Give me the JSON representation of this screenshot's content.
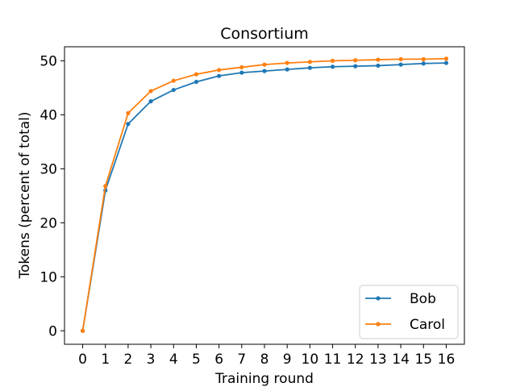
{
  "chart_data": {
    "type": "line",
    "title": "Consortium",
    "xlabel": "Training round",
    "ylabel": "Tokens (percent of total)",
    "x": [
      0,
      1,
      2,
      3,
      4,
      5,
      6,
      7,
      8,
      9,
      10,
      11,
      12,
      13,
      14,
      15,
      16
    ],
    "xticks": [
      "0",
      "1",
      "2",
      "3",
      "4",
      "5",
      "6",
      "7",
      "8",
      "9",
      "10",
      "11",
      "12",
      "13",
      "14",
      "15",
      "16"
    ],
    "yticks": [
      "0",
      "10",
      "20",
      "30",
      "40",
      "50"
    ],
    "xlim": [
      -0.8,
      16.8
    ],
    "ylim": [
      -2.5,
      52.6
    ],
    "grid": false,
    "legend_position": "lower-right",
    "series": [
      {
        "name": "Bob",
        "color": "#1f77b4",
        "values": [
          0.0,
          26.0,
          38.3,
          42.5,
          44.6,
          46.1,
          47.2,
          47.8,
          48.1,
          48.4,
          48.7,
          48.9,
          49.0,
          49.1,
          49.3,
          49.5,
          49.6
        ]
      },
      {
        "name": "Carol",
        "color": "#ff7f0e",
        "values": [
          0.0,
          26.8,
          40.3,
          44.4,
          46.3,
          47.5,
          48.3,
          48.8,
          49.3,
          49.6,
          49.8,
          50.0,
          50.1,
          50.2,
          50.3,
          50.3,
          50.4
        ]
      }
    ]
  }
}
